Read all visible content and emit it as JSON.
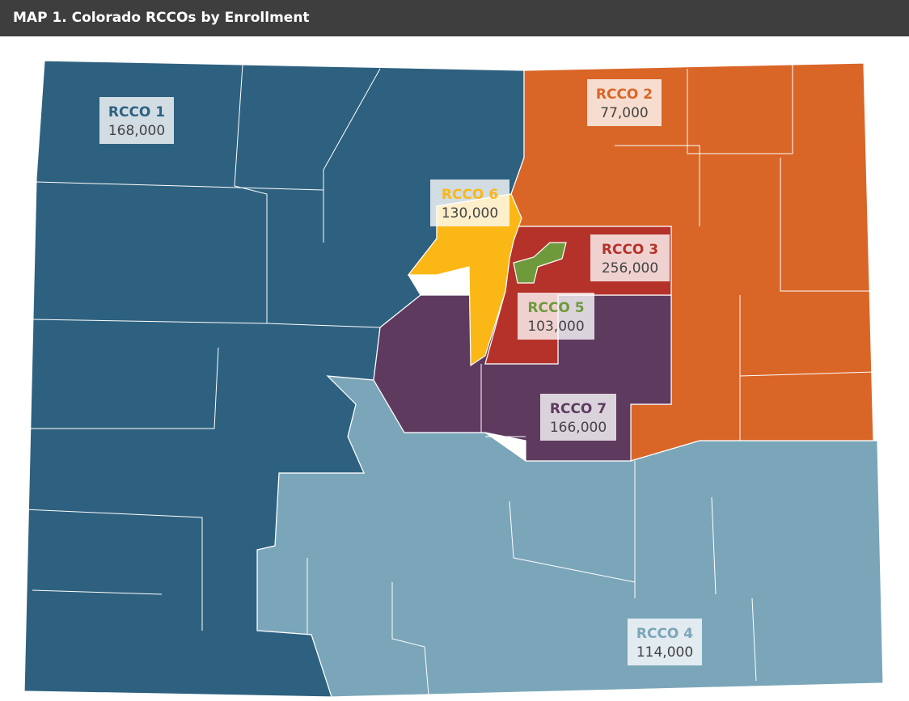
{
  "header": {
    "title": "MAP 1. Colorado RCCOs by Enrollment"
  },
  "regions": [
    {
      "name": "RCCO 1",
      "enrollment": "168,000"
    },
    {
      "name": "RCCO 2",
      "enrollment": "77,000"
    },
    {
      "name": "RCCO 3",
      "enrollment": "256,000"
    },
    {
      "name": "RCCO 4",
      "enrollment": "114,000"
    },
    {
      "name": "RCCO 5",
      "enrollment": "103,000"
    },
    {
      "name": "RCCO 6",
      "enrollment": "130,000"
    },
    {
      "name": "RCCO 7",
      "enrollment": "166,000"
    }
  ]
}
